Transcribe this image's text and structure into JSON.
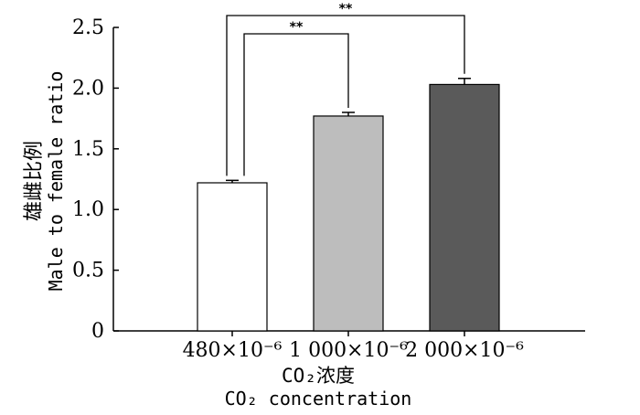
{
  "chart_data": {
    "type": "bar",
    "categories": [
      "480×10⁻⁶",
      "1 000×10⁻⁶",
      "2 000×10⁻⁶"
    ],
    "values": [
      1.22,
      1.77,
      2.03
    ],
    "errors": [
      0.02,
      0.03,
      0.05
    ],
    "colors": [
      "#ffffff",
      "#bdbdbd",
      "#5a5a5a"
    ],
    "ylim": [
      0,
      2.5
    ],
    "yticks": [
      0,
      0.5,
      1.0,
      1.5,
      2.0,
      2.5
    ],
    "ytick_labels": [
      "0",
      "0.5",
      "1.0",
      "1.5",
      "2.0",
      "2.5"
    ],
    "ylabel_cn": "雄雌比例",
    "ylabel_en": "Male to female ratio",
    "xlabel_cn": "CO₂浓度",
    "xlabel_en": "CO₂ concentration",
    "significance": [
      {
        "from": 0,
        "to": 1,
        "label": "**"
      },
      {
        "from": 0,
        "to": 2,
        "label": "**"
      }
    ],
    "grid": false
  }
}
